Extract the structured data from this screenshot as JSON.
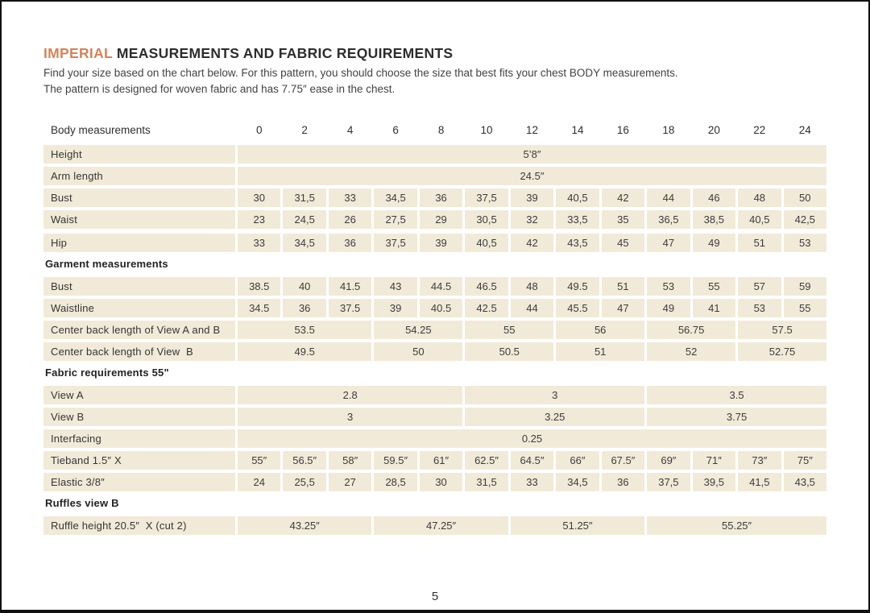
{
  "page": {
    "title_highlight": "IMPERIAL",
    "title_rest": " MEASUREMENTS AND FABRIC REQUIREMENTS",
    "subtitle_line1": "Find your size based on the chart below. For this pattern, you should choose the size that best fits your chest BODY measurements.",
    "subtitle_line2": "The pattern is designed for woven fabric and has 7.75″ ease in the chest.",
    "page_number": "5",
    "accent_color": "#d2845c",
    "cell_bg_color": "#f1ead8",
    "text_color": "#3a3a3a"
  },
  "table": {
    "header": {
      "label": "Body measurements",
      "sizes": [
        "0",
        "2",
        "4",
        "6",
        "8",
        "10",
        "12",
        "14",
        "16",
        "18",
        "20",
        "22",
        "24"
      ]
    },
    "rows": [
      {
        "type": "data",
        "label": "Height",
        "cells": [
          {
            "v": "5’8″",
            "span": 13
          }
        ]
      },
      {
        "type": "data",
        "label": "Arm length",
        "cells": [
          {
            "v": "24.5″",
            "span": 13
          }
        ]
      },
      {
        "type": "data",
        "label": "Bust",
        "cells": [
          {
            "v": "30"
          },
          {
            "v": "31,5"
          },
          {
            "v": "33"
          },
          {
            "v": "34,5"
          },
          {
            "v": "36"
          },
          {
            "v": "37,5"
          },
          {
            "v": "39"
          },
          {
            "v": "40,5"
          },
          {
            "v": "42"
          },
          {
            "v": "44"
          },
          {
            "v": "46"
          },
          {
            "v": "48"
          },
          {
            "v": "50"
          }
        ]
      },
      {
        "type": "data",
        "label": "Waist",
        "cells": [
          {
            "v": "23"
          },
          {
            "v": "24,5"
          },
          {
            "v": "26"
          },
          {
            "v": "27,5"
          },
          {
            "v": "29"
          },
          {
            "v": "30,5"
          },
          {
            "v": "32"
          },
          {
            "v": "33,5"
          },
          {
            "v": "35"
          },
          {
            "v": "36,5"
          },
          {
            "v": "38,5"
          },
          {
            "v": "40,5"
          },
          {
            "v": "42,5"
          }
        ]
      },
      {
        "type": "data",
        "label": "Hip",
        "gap_before": true,
        "cells": [
          {
            "v": "33"
          },
          {
            "v": "34,5"
          },
          {
            "v": "36"
          },
          {
            "v": "37,5"
          },
          {
            "v": "39"
          },
          {
            "v": "40,5"
          },
          {
            "v": "42"
          },
          {
            "v": "43,5"
          },
          {
            "v": "45"
          },
          {
            "v": "47"
          },
          {
            "v": "49"
          },
          {
            "v": "51"
          },
          {
            "v": "53"
          }
        ]
      },
      {
        "type": "section",
        "label": "Garment measurements"
      },
      {
        "type": "data",
        "label": "Bust",
        "cells": [
          {
            "v": "38.5"
          },
          {
            "v": "40"
          },
          {
            "v": "41.5"
          },
          {
            "v": "43"
          },
          {
            "v": "44.5"
          },
          {
            "v": "46.5"
          },
          {
            "v": "48"
          },
          {
            "v": "49.5"
          },
          {
            "v": "51"
          },
          {
            "v": "53"
          },
          {
            "v": "55"
          },
          {
            "v": "57"
          },
          {
            "v": "59"
          }
        ]
      },
      {
        "type": "data",
        "label": "Waistline",
        "cells": [
          {
            "v": "34.5"
          },
          {
            "v": "36"
          },
          {
            "v": "37.5"
          },
          {
            "v": "39"
          },
          {
            "v": "40.5"
          },
          {
            "v": "42.5"
          },
          {
            "v": "44"
          },
          {
            "v": "45.5"
          },
          {
            "v": "47"
          },
          {
            "v": "49"
          },
          {
            "v": "41"
          },
          {
            "v": "53"
          },
          {
            "v": "55"
          }
        ]
      },
      {
        "type": "data",
        "label": "Center back length of View A and B",
        "cells": [
          {
            "v": "53.5",
            "span": 3
          },
          {
            "v": "54.25",
            "span": 2
          },
          {
            "v": "55",
            "span": 2
          },
          {
            "v": "56",
            "span": 2
          },
          {
            "v": "56.75",
            "span": 2
          },
          {
            "v": "57.5",
            "span": 2
          }
        ]
      },
      {
        "type": "data",
        "label": "Center back length of View  B",
        "cells": [
          {
            "v": "49.5",
            "span": 3
          },
          {
            "v": "50",
            "span": 2
          },
          {
            "v": "50.5",
            "span": 2
          },
          {
            "v": "51",
            "span": 2
          },
          {
            "v": "52",
            "span": 2
          },
          {
            "v": "52.75",
            "span": 2
          }
        ]
      },
      {
        "type": "section",
        "label": "Fabric requirements 55\""
      },
      {
        "type": "data",
        "label": "View A",
        "cells": [
          {
            "v": "2.8",
            "span": 5
          },
          {
            "v": "3",
            "span": 4
          },
          {
            "v": "3.5",
            "span": 4
          }
        ]
      },
      {
        "type": "data",
        "label": "View B",
        "cells": [
          {
            "v": "3",
            "span": 5
          },
          {
            "v": "3.25",
            "span": 4
          },
          {
            "v": "3.75",
            "span": 4
          }
        ]
      },
      {
        "type": "data",
        "label": "Interfacing",
        "cells": [
          {
            "v": "0.25",
            "span": 13
          }
        ]
      },
      {
        "type": "data",
        "label": "Tieband 1.5″ X",
        "cells": [
          {
            "v": "55″"
          },
          {
            "v": "56.5″"
          },
          {
            "v": "58″"
          },
          {
            "v": "59.5″"
          },
          {
            "v": "61″"
          },
          {
            "v": "62.5″"
          },
          {
            "v": "64.5″"
          },
          {
            "v": "66″"
          },
          {
            "v": "67.5″"
          },
          {
            "v": "69″"
          },
          {
            "v": "71″"
          },
          {
            "v": "73″"
          },
          {
            "v": "75″"
          }
        ]
      },
      {
        "type": "data",
        "label": "Elastic 3/8″",
        "cells": [
          {
            "v": "24"
          },
          {
            "v": "25,5"
          },
          {
            "v": "27"
          },
          {
            "v": "28,5"
          },
          {
            "v": "30"
          },
          {
            "v": "31,5"
          },
          {
            "v": "33"
          },
          {
            "v": "34,5"
          },
          {
            "v": "36"
          },
          {
            "v": "37,5"
          },
          {
            "v": "39,5"
          },
          {
            "v": "41,5"
          },
          {
            "v": "43,5"
          }
        ]
      },
      {
        "type": "section",
        "label": "Ruffles view B"
      },
      {
        "type": "data",
        "label": "Ruffle height 20.5″  X (cut 2)",
        "cells": [
          {
            "v": "43.25″",
            "span": 3
          },
          {
            "v": "47.25″",
            "span": 3
          },
          {
            "v": "51.25″",
            "span": 3
          },
          {
            "v": "55.25″",
            "span": 4
          }
        ]
      }
    ]
  }
}
